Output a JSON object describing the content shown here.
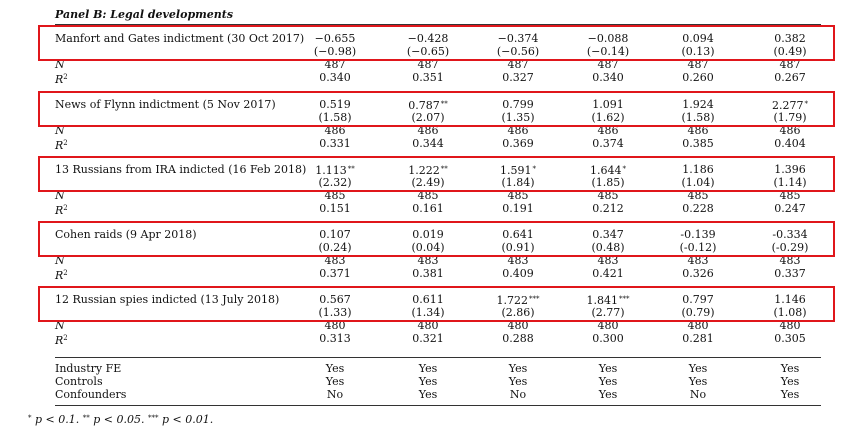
{
  "panel_title": "Panel B: Legal developments",
  "n_label": "N",
  "r2_label": "R",
  "r2_sup": "2",
  "events": [
    {
      "label": "Manfort and Gates indictment (30 Oct 2017)",
      "coef": [
        [
          "−0.655",
          ""
        ],
        [
          "−0.428",
          ""
        ],
        [
          "−0.374",
          ""
        ],
        [
          "−0.088",
          ""
        ],
        [
          "0.094",
          ""
        ],
        [
          "0.382",
          ""
        ]
      ],
      "t": [
        "(−0.98)",
        "(−0.65)",
        "(−0.56)",
        "(−0.14)",
        "(0.13)",
        "(0.49)"
      ],
      "n": [
        "487",
        "487",
        "487",
        "487",
        "487",
        "487"
      ],
      "r2": [
        "0.340",
        "0.351",
        "0.327",
        "0.340",
        "0.260",
        "0.267"
      ]
    },
    {
      "label": "News of Flynn indictment (5 Nov 2017)",
      "coef": [
        [
          "0.519",
          ""
        ],
        [
          "0.787",
          "**"
        ],
        [
          "0.799",
          ""
        ],
        [
          "1.091",
          ""
        ],
        [
          "1.924",
          ""
        ],
        [
          "2.277",
          "*"
        ]
      ],
      "t": [
        "(1.58)",
        "(2.07)",
        "(1.35)",
        "(1.62)",
        "(1.58)",
        "(1.79)"
      ],
      "n": [
        "486",
        "486",
        "486",
        "486",
        "486",
        "486"
      ],
      "r2": [
        "0.331",
        "0.344",
        "0.369",
        "0.374",
        "0.385",
        "0.404"
      ]
    },
    {
      "label": "13 Russians from IRA indicted (16 Feb 2018)",
      "coef": [
        [
          "1.113",
          "**"
        ],
        [
          "1.222",
          "**"
        ],
        [
          "1.591",
          "*"
        ],
        [
          "1.644",
          "*"
        ],
        [
          "1.186",
          ""
        ],
        [
          "1.396",
          ""
        ]
      ],
      "t": [
        "(2.32)",
        "(2.49)",
        "(1.84)",
        "(1.85)",
        "(1.04)",
        "(1.14)"
      ],
      "n": [
        "485",
        "485",
        "485",
        "485",
        "485",
        "485"
      ],
      "r2": [
        "0.151",
        "0.161",
        "0.191",
        "0.212",
        "0.228",
        "0.247"
      ]
    },
    {
      "label": "Cohen raids (9 Apr 2018)",
      "coef": [
        [
          "0.107",
          ""
        ],
        [
          "0.019",
          ""
        ],
        [
          "0.641",
          ""
        ],
        [
          "0.347",
          ""
        ],
        [
          "-0.139",
          ""
        ],
        [
          "-0.334",
          ""
        ]
      ],
      "t": [
        "(0.24)",
        "(0.04)",
        "(0.91)",
        "(0.48)",
        "(-0.12)",
        "(-0.29)"
      ],
      "n": [
        "483",
        "483",
        "483",
        "483",
        "483",
        "483"
      ],
      "r2": [
        "0.371",
        "0.381",
        "0.409",
        "0.421",
        "0.326",
        "0.337"
      ]
    },
    {
      "label": "12 Russian spies indicted (13 July 2018)",
      "coef": [
        [
          "0.567",
          ""
        ],
        [
          "0.611",
          ""
        ],
        [
          "1.722",
          "***"
        ],
        [
          "1.841",
          "***"
        ],
        [
          "0.797",
          ""
        ],
        [
          "1.146",
          ""
        ]
      ],
      "t": [
        "(1.33)",
        "(1.34)",
        "(2.86)",
        "(2.77)",
        "(0.79)",
        "(1.08)"
      ],
      "n": [
        "480",
        "480",
        "480",
        "480",
        "480",
        "480"
      ],
      "r2": [
        "0.313",
        "0.321",
        "0.288",
        "0.300",
        "0.281",
        "0.305"
      ]
    }
  ],
  "controls": [
    {
      "label": "Industry FE",
      "values": [
        "Yes",
        "Yes",
        "Yes",
        "Yes",
        "Yes",
        "Yes"
      ]
    },
    {
      "label": "Controls",
      "values": [
        "Yes",
        "Yes",
        "Yes",
        "Yes",
        "Yes",
        "Yes"
      ]
    },
    {
      "label": "Confounders",
      "values": [
        "No",
        "Yes",
        "No",
        "Yes",
        "No",
        "Yes"
      ]
    }
  ],
  "footnote": [
    {
      "stars": "*",
      "text": "p < 0.1."
    },
    {
      "stars": "**",
      "text": "p < 0.05."
    },
    {
      "stars": "***",
      "text": "p < 0.01."
    }
  ],
  "highlight_color": "#e0161b"
}
